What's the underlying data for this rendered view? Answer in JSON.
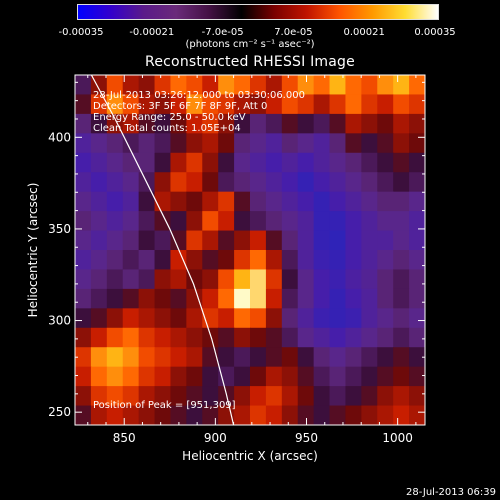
{
  "colorbar": {
    "colors": [
      "#0000ff",
      "#3300cc",
      "#5a1a8a",
      "#6a2a7a",
      "#441144",
      "#000000",
      "#7a0000",
      "#c01400",
      "#ff5500",
      "#ff9900",
      "#ffdd33",
      "#ffffff"
    ],
    "ticks": [
      "-0.00035",
      "-0.00021",
      "-7.0e-05",
      "7.0e-05",
      "0.00021",
      "0.00035"
    ],
    "units": "(photons cm⁻² s⁻¹ asec⁻²)"
  },
  "chart_data": {
    "type": "heatmap",
    "title": "Reconstructed RHESSI Image",
    "xlabel": "Heliocentric X (arcsec)",
    "ylabel": "Heliocentric Y (arcsec)",
    "xlim": [
      823,
      1015
    ],
    "ylim": [
      243,
      434
    ],
    "xticks": [
      850,
      900,
      950,
      1000
    ],
    "yticks": [
      250,
      300,
      350,
      400
    ],
    "annotations": [
      "28-Jul-2013 03:26:12.000 to 03:30:06.000",
      "Detectors: 3F 5F 6F 7F 8F 9F, Att 0",
      "Energy Range: 25.0 - 50.0 keV",
      "Clean      Total counts: 1.05E+04"
    ],
    "peak_label": "Position of Peak = [951,309]",
    "peak": {
      "x": 951,
      "y": 309
    },
    "limb_curve": [
      [
        832,
        434
      ],
      [
        845,
        410
      ],
      [
        860,
        380
      ],
      [
        875,
        350
      ],
      [
        888,
        320
      ],
      [
        898,
        290
      ],
      [
        906,
        260
      ],
      [
        910,
        243
      ]
    ],
    "intensity_grid": [
      [
        0.35,
        0.55,
        0.75,
        0.6,
        0.55,
        0.7,
        0.8,
        0.75,
        0.65,
        0.85,
        0.8,
        0.7,
        0.6,
        0.75,
        0.85,
        0.8,
        0.9,
        0.8,
        0.75,
        0.85,
        0.9,
        0.8
      ],
      [
        0.45,
        0.7,
        0.85,
        0.75,
        0.6,
        0.55,
        0.65,
        0.85,
        0.75,
        0.7,
        0.6,
        0.55,
        0.65,
        0.75,
        0.7,
        0.6,
        0.7,
        0.8,
        0.7,
        0.65,
        0.75,
        0.7
      ],
      [
        0.3,
        0.4,
        0.55,
        0.6,
        0.45,
        0.4,
        0.5,
        0.65,
        0.7,
        0.55,
        0.4,
        0.3,
        0.35,
        0.45,
        0.4,
        0.35,
        0.45,
        0.6,
        0.55,
        0.5,
        0.6,
        0.55
      ],
      [
        0.2,
        0.25,
        0.3,
        0.35,
        0.3,
        0.35,
        0.45,
        0.55,
        0.6,
        0.5,
        0.3,
        0.25,
        0.2,
        0.3,
        0.25,
        0.2,
        0.3,
        0.45,
        0.4,
        0.45,
        0.55,
        0.5
      ],
      [
        0.15,
        0.2,
        0.25,
        0.3,
        0.3,
        0.4,
        0.6,
        0.7,
        0.55,
        0.4,
        0.25,
        0.2,
        0.15,
        0.2,
        0.15,
        0.2,
        0.25,
        0.3,
        0.35,
        0.4,
        0.45,
        0.4
      ],
      [
        0.2,
        0.15,
        0.2,
        0.25,
        0.35,
        0.55,
        0.7,
        0.65,
        0.5,
        0.35,
        0.3,
        0.25,
        0.2,
        0.15,
        0.1,
        0.15,
        0.2,
        0.25,
        0.3,
        0.35,
        0.4,
        0.35
      ],
      [
        0.25,
        0.2,
        0.15,
        0.2,
        0.4,
        0.6,
        0.55,
        0.5,
        0.6,
        0.7,
        0.45,
        0.3,
        0.25,
        0.2,
        0.15,
        0.1,
        0.15,
        0.2,
        0.25,
        0.3,
        0.3,
        0.25
      ],
      [
        0.3,
        0.25,
        0.2,
        0.25,
        0.35,
        0.45,
        0.4,
        0.55,
        0.75,
        0.65,
        0.4,
        0.35,
        0.3,
        0.25,
        0.2,
        0.1,
        0.1,
        0.15,
        0.2,
        0.25,
        0.25,
        0.2
      ],
      [
        0.25,
        0.2,
        0.25,
        0.3,
        0.4,
        0.35,
        0.45,
        0.7,
        0.6,
        0.45,
        0.55,
        0.65,
        0.45,
        0.3,
        0.2,
        0.1,
        0.08,
        0.15,
        0.2,
        0.2,
        0.25,
        0.2
      ],
      [
        0.2,
        0.25,
        0.3,
        0.35,
        0.3,
        0.4,
        0.65,
        0.55,
        0.45,
        0.5,
        0.7,
        0.8,
        0.6,
        0.35,
        0.2,
        0.12,
        0.1,
        0.15,
        0.2,
        0.25,
        0.3,
        0.25
      ],
      [
        0.25,
        0.3,
        0.35,
        0.3,
        0.35,
        0.55,
        0.6,
        0.5,
        0.55,
        0.75,
        0.9,
        0.95,
        0.7,
        0.4,
        0.25,
        0.15,
        0.12,
        0.18,
        0.22,
        0.3,
        0.35,
        0.3
      ],
      [
        0.3,
        0.35,
        0.4,
        0.45,
        0.55,
        0.5,
        0.45,
        0.55,
        0.65,
        0.8,
        1.0,
        0.95,
        0.65,
        0.35,
        0.25,
        0.15,
        0.1,
        0.15,
        0.2,
        0.3,
        0.35,
        0.3
      ],
      [
        0.4,
        0.45,
        0.55,
        0.65,
        0.6,
        0.55,
        0.5,
        0.6,
        0.7,
        0.65,
        0.8,
        0.75,
        0.55,
        0.3,
        0.2,
        0.12,
        0.1,
        0.12,
        0.2,
        0.25,
        0.3,
        0.25
      ],
      [
        0.55,
        0.65,
        0.75,
        0.8,
        0.7,
        0.65,
        0.6,
        0.55,
        0.5,
        0.45,
        0.55,
        0.5,
        0.45,
        0.35,
        0.25,
        0.2,
        0.15,
        0.2,
        0.25,
        0.3,
        0.35,
        0.3
      ],
      [
        0.7,
        0.85,
        0.9,
        0.85,
        0.75,
        0.7,
        0.65,
        0.6,
        0.45,
        0.4,
        0.35,
        0.4,
        0.45,
        0.5,
        0.4,
        0.3,
        0.25,
        0.3,
        0.35,
        0.4,
        0.45,
        0.4
      ],
      [
        0.65,
        0.8,
        0.85,
        0.8,
        0.7,
        0.65,
        0.55,
        0.5,
        0.4,
        0.35,
        0.4,
        0.5,
        0.6,
        0.55,
        0.45,
        0.35,
        0.3,
        0.35,
        0.4,
        0.45,
        0.5,
        0.45
      ],
      [
        0.55,
        0.7,
        0.75,
        0.7,
        0.6,
        0.55,
        0.5,
        0.45,
        0.4,
        0.45,
        0.55,
        0.65,
        0.7,
        0.6,
        0.5,
        0.4,
        0.35,
        0.4,
        0.45,
        0.55,
        0.6,
        0.55
      ],
      [
        0.45,
        0.6,
        0.65,
        0.6,
        0.55,
        0.5,
        0.45,
        0.4,
        0.45,
        0.55,
        0.6,
        0.7,
        0.65,
        0.55,
        0.45,
        0.4,
        0.45,
        0.5,
        0.55,
        0.6,
        0.65,
        0.6
      ]
    ]
  },
  "footer": {
    "timestamp": "28-Jul-2013 06:39"
  }
}
